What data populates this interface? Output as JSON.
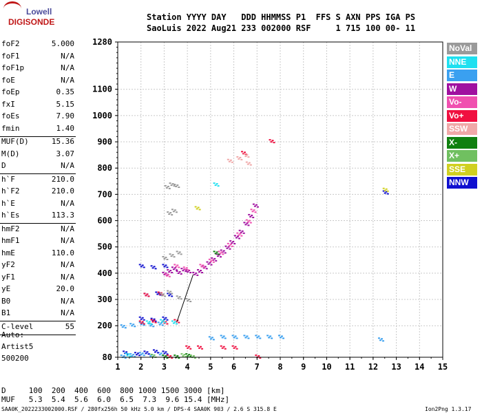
{
  "logo": {
    "line1": "Lowell",
    "line2": "DIGISONDE"
  },
  "header": {
    "line1": "Station YYYY DAY   DDD HHMMSS P1  FFS S AXN PPS IGA PS",
    "line2": "SaoLuis 2022 Aug21 233 002000 RSF     1 715 100 00- 11"
  },
  "params": [
    {
      "k": "foF2",
      "v": "5.000"
    },
    {
      "k": "foF1",
      "v": "N/A"
    },
    {
      "k": "foF1p",
      "v": "N/A"
    },
    {
      "k": "foE",
      "v": "N/A"
    },
    {
      "k": "foEp",
      "v": "0.35"
    },
    {
      "k": "fxI",
      "v": "5.15"
    },
    {
      "k": "foEs",
      "v": "7.90"
    },
    {
      "k": "fmin",
      "v": "1.40"
    },
    {
      "k": "MUF(D)",
      "v": "15.36"
    },
    {
      "k": "M(D)",
      "v": "3.07"
    },
    {
      "k": "D",
      "v": "N/A"
    },
    {
      "k": "h`F",
      "v": "210.0"
    },
    {
      "k": "h`F2",
      "v": "210.0"
    },
    {
      "k": "h`E",
      "v": "N/A"
    },
    {
      "k": "h`Es",
      "v": "113.3"
    },
    {
      "k": "hmF2",
      "v": "N/A"
    },
    {
      "k": "hmF1",
      "v": "N/A"
    },
    {
      "k": "hmE",
      "v": "110.0"
    },
    {
      "k": "yF2",
      "v": "N/A"
    },
    {
      "k": "yF1",
      "v": "N/A"
    },
    {
      "k": "yE",
      "v": "20.0"
    },
    {
      "k": "B0",
      "v": "N/A"
    },
    {
      "k": "B1",
      "v": "N/A"
    },
    {
      "k": "C-level",
      "v": "55"
    }
  ],
  "auto": {
    "line1": "Auto:",
    "line2": "Artist5",
    "line3": "500200"
  },
  "legend": [
    {
      "label": "NoVal",
      "color": "#9a9a9a"
    },
    {
      "label": "NNE",
      "color": "#1ee0f0"
    },
    {
      "label": "E",
      "color": "#3aa0f0"
    },
    {
      "label": "W",
      "color": "#a010a0"
    },
    {
      "label": "Vo-",
      "color": "#f050b0"
    },
    {
      "label": "Vo+",
      "color": "#f01040"
    },
    {
      "label": "SSW",
      "color": "#f0a8a8"
    },
    {
      "label": "X-",
      "color": "#108010"
    },
    {
      "label": "X+",
      "color": "#70c060"
    },
    {
      "label": "SSE",
      "color": "#d0d020"
    },
    {
      "label": "NNW",
      "color": "#1010d0"
    }
  ],
  "footer": {
    "d_line": "D     100  200  400  600  800 1000 1500 3000 [km]",
    "muf_line": "MUF   5.3  5.4  5.6  6.0  6.5  7.3  9.6 15.4 [MHz]",
    "file_line": "SAA0K_2022233002000.RSF / 280fx256h 50 kHz 5.0 km / DPS-4 SAA0K 903 / 2.6 S 315.8 E",
    "version": "Ion2Png 1.3.17"
  },
  "chart_data": {
    "type": "scatter",
    "x_ticks": [
      "1",
      "2",
      "3",
      "4",
      "5",
      "6",
      "7",
      "8",
      "9",
      "10",
      "11",
      "12",
      "13",
      "14",
      "15"
    ],
    "y_ticks": [
      "80",
      "200",
      "300",
      "400",
      "500",
      "600",
      "700",
      "800",
      "900",
      "1000",
      "1100",
      "1280"
    ],
    "xlim": [
      1,
      15
    ],
    "ylim": [
      80,
      1280
    ],
    "grid": true,
    "traces": [
      {
        "color": "#a010a0",
        "points": [
          [
            4.3,
            400
          ],
          [
            4.5,
            410
          ],
          [
            4.7,
            425
          ],
          [
            4.9,
            440
          ],
          [
            5.1,
            455
          ],
          [
            5.3,
            470
          ],
          [
            5.5,
            485
          ],
          [
            5.7,
            500
          ],
          [
            5.9,
            520
          ],
          [
            6.1,
            540
          ],
          [
            6.3,
            560
          ],
          [
            6.5,
            590
          ],
          [
            6.7,
            620
          ],
          [
            6.9,
            660
          ],
          [
            3.0,
            400
          ],
          [
            3.2,
            410
          ],
          [
            3.4,
            420
          ],
          [
            3.6,
            405
          ],
          [
            3.8,
            415
          ],
          [
            4.0,
            410
          ]
        ]
      },
      {
        "color": "#f050b0",
        "points": [
          [
            4.6,
            430
          ],
          [
            5.0,
            450
          ],
          [
            5.4,
            480
          ],
          [
            5.8,
            510
          ],
          [
            6.2,
            550
          ],
          [
            6.6,
            600
          ],
          [
            6.8,
            640
          ],
          [
            3.1,
            395
          ],
          [
            3.5,
            430
          ],
          [
            3.9,
            420
          ]
        ]
      },
      {
        "color": "#3aa0f0",
        "points": [
          [
            1.2,
            200
          ],
          [
            1.6,
            205
          ],
          [
            2.0,
            210
          ],
          [
            2.4,
            205
          ],
          [
            2.8,
            210
          ],
          [
            1.2,
            85
          ],
          [
            1.6,
            90
          ],
          [
            2.0,
            95
          ],
          [
            2.4,
            90
          ],
          [
            2.8,
            95
          ],
          [
            5.0,
            155
          ],
          [
            5.5,
            160
          ],
          [
            6.0,
            160
          ],
          [
            6.5,
            160
          ],
          [
            7.0,
            160
          ],
          [
            7.5,
            160
          ],
          [
            8.0,
            160
          ],
          [
            12.3,
            150
          ]
        ]
      },
      {
        "color": "#1010d0",
        "points": [
          [
            1.3,
            100
          ],
          [
            1.8,
            95
          ],
          [
            2.2,
            100
          ],
          [
            2.6,
            105
          ],
          [
            3.0,
            100
          ],
          [
            2.0,
            230
          ],
          [
            2.5,
            225
          ],
          [
            3.0,
            230
          ],
          [
            2.2,
            320
          ],
          [
            2.7,
            325
          ],
          [
            3.2,
            320
          ],
          [
            2.0,
            430
          ],
          [
            2.5,
            425
          ],
          [
            3.0,
            430
          ],
          [
            12.5,
            710
          ]
        ]
      },
      {
        "color": "#f01040",
        "points": [
          [
            2.0,
            215
          ],
          [
            2.5,
            220
          ],
          [
            3.0,
            215
          ],
          [
            3.5,
            220
          ],
          [
            2.2,
            320
          ],
          [
            2.8,
            325
          ],
          [
            3.2,
            85
          ],
          [
            4.0,
            120
          ],
          [
            4.5,
            120
          ],
          [
            5.5,
            120
          ],
          [
            6.0,
            120
          ],
          [
            7.0,
            85
          ],
          [
            7.6,
            905
          ],
          [
            6.4,
            860
          ]
        ]
      },
      {
        "color": "#108010",
        "points": [
          [
            3.0,
            85
          ],
          [
            3.5,
            85
          ],
          [
            4.0,
            90
          ],
          [
            5.2,
            480
          ]
        ]
      },
      {
        "color": "#70c060",
        "points": [
          [
            2.5,
            88
          ],
          [
            3.8,
            90
          ],
          [
            4.2,
            85
          ]
        ]
      },
      {
        "color": "#d0d020",
        "points": [
          [
            4.4,
            650
          ],
          [
            12.5,
            720
          ]
        ]
      },
      {
        "color": "#f0a8a8",
        "points": [
          [
            6.2,
            840
          ],
          [
            6.5,
            850
          ],
          [
            6.6,
            820
          ],
          [
            5.8,
            830
          ]
        ]
      },
      {
        "color": "#1ee0f0",
        "points": [
          [
            2.3,
            215
          ],
          [
            2.9,
            220
          ],
          [
            3.4,
            215
          ],
          [
            1.4,
            92
          ],
          [
            5.2,
            740
          ]
        ]
      },
      {
        "color": "#9a9a9a",
        "points": [
          [
            3.1,
            730
          ],
          [
            3.3,
            740
          ],
          [
            3.5,
            735
          ],
          [
            3.2,
            630
          ],
          [
            3.4,
            640
          ],
          [
            3.0,
            460
          ],
          [
            3.3,
            470
          ],
          [
            3.6,
            480
          ],
          [
            2.9,
            320
          ],
          [
            3.2,
            330
          ],
          [
            3.6,
            310
          ],
          [
            4.0,
            300
          ]
        ]
      }
    ],
    "line": [
      [
        3.55,
        215
      ],
      [
        4.25,
        395
      ]
    ]
  }
}
